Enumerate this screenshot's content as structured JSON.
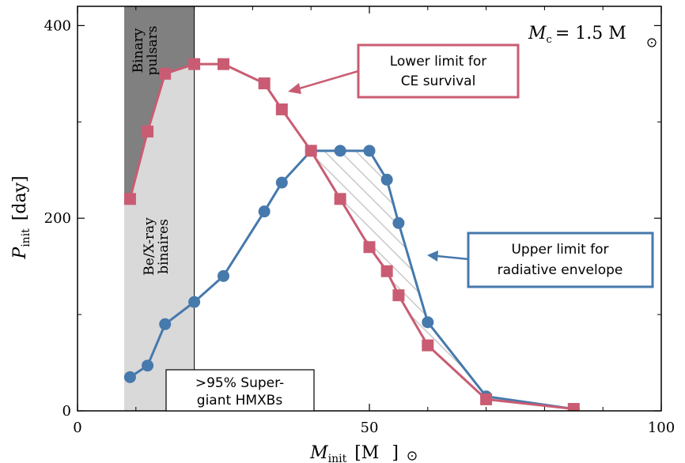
{
  "chart_data": {
    "type": "line",
    "title": "",
    "xlabel": {
      "main": "M",
      "sub": "init",
      "unit": "[M",
      "unit_close": "]"
    },
    "ylabel": {
      "main": "P",
      "sub": "init",
      "unit": "[day]"
    },
    "xlim": [
      0,
      100
    ],
    "ylim": [
      0,
      420
    ],
    "xticks": [
      0,
      50,
      100
    ],
    "yticks": [
      0,
      200,
      400
    ],
    "grid": false,
    "series": [
      {
        "name": "Lower limit for CE survival",
        "color": "#c95c72",
        "marker": "square",
        "x": [
          9,
          12,
          15,
          20,
          25,
          32,
          35,
          40,
          45,
          50,
          53,
          55,
          60,
          70,
          85
        ],
        "y": [
          220,
          290,
          350,
          360,
          360,
          340,
          313,
          270,
          220,
          170,
          145,
          120,
          68,
          12,
          2
        ]
      },
      {
        "name": "Upper limit for radiative envelope",
        "color": "#4679ac",
        "marker": "circle",
        "x": [
          9,
          12,
          15,
          20,
          25,
          32,
          35,
          40,
          45,
          50,
          53,
          55,
          60,
          70,
          85
        ],
        "y": [
          35,
          47,
          90,
          113,
          140,
          207,
          237,
          270,
          270,
          270,
          240,
          195,
          92,
          15,
          2
        ]
      }
    ],
    "regions": {
      "binary_pulsars": {
        "label_line1": "Binary",
        "label_line2": "pulsars",
        "x": [
          8,
          20
        ],
        "color": "#808080"
      },
      "bex": {
        "label_line1": "Be/X-ray",
        "label_line2": "binaires",
        "x": [
          8,
          20
        ],
        "color": "#d9d9d9"
      }
    },
    "annotations": {
      "mass": {
        "main": "M",
        "sub": "c",
        "text": "= 1.5 M"
      },
      "lower_box_line1": "Lower limit for",
      "lower_box_line2": "CE survival",
      "upper_box_line1": "Upper limit for",
      "upper_box_line2": "radiative envelope",
      "sg_box_line1": ">95% Super-",
      "sg_box_line2": "giant HMXBs"
    }
  }
}
